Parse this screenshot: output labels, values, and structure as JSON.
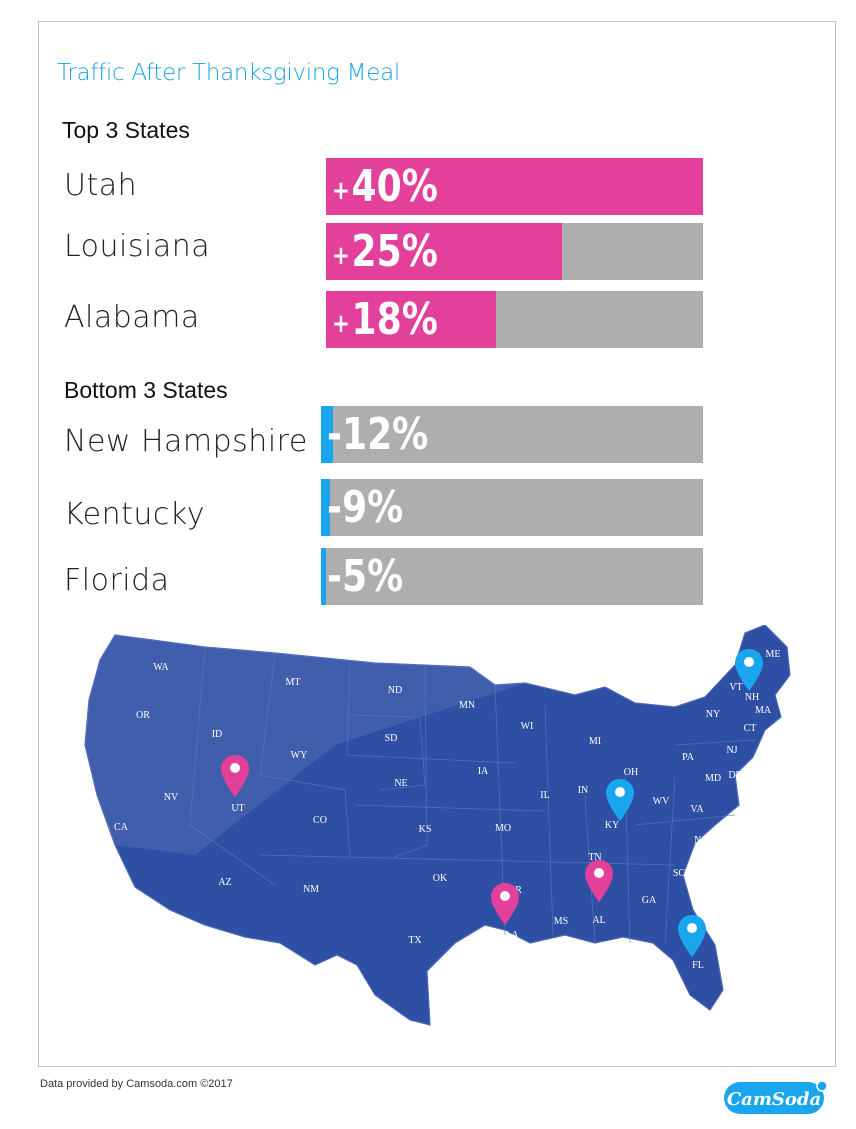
{
  "title": "Traffic After Thanksgiving Meal",
  "sections": {
    "top_label": "Top 3 States",
    "bottom_label": "Bottom 3 States"
  },
  "chart_data": {
    "type": "bar",
    "orientation": "horizontal",
    "title": "Traffic After Thanksgiving Meal",
    "groups": [
      {
        "name": "Top 3 States",
        "categories": [
          "Utah",
          "Louisiana",
          "Alabama"
        ],
        "values": [
          40,
          25,
          18
        ],
        "labels": [
          "+40%",
          "+25%",
          "+18%"
        ],
        "color": "#e2409b"
      },
      {
        "name": "Bottom 3 States",
        "categories": [
          "New Hampshire",
          "Kentucky",
          "Florida"
        ],
        "values": [
          -12,
          -9,
          -5
        ],
        "labels": [
          "-12%",
          "-9%",
          "-5%"
        ],
        "color": "#1aa6ee"
      }
    ],
    "track_color": "#aeaeae",
    "xlim": [
      0,
      40
    ]
  },
  "map": {
    "background_color": "#2e4fa3",
    "marker_pos_color": "#e2409b",
    "marker_neg_color": "#1aa6ee",
    "state_labels": [
      "WA",
      "OR",
      "CA",
      "ID",
      "NV",
      "MT",
      "WY",
      "UT",
      "AZ",
      "CO",
      "NM",
      "ND",
      "SD",
      "NE",
      "KS",
      "OK",
      "TX",
      "MN",
      "IA",
      "MO",
      "AR",
      "LA",
      "WI",
      "IL",
      "MI",
      "IN",
      "KY",
      "TN",
      "MS",
      "AL",
      "GA",
      "FL",
      "SC",
      "NC",
      "VA",
      "WV",
      "OH",
      "PA",
      "NY",
      "VT",
      "NH",
      "ME",
      "MA",
      "CT",
      "NJ",
      "MD",
      "DE"
    ],
    "markers": [
      {
        "state": "UT",
        "kind": "pos"
      },
      {
        "state": "LA",
        "kind": "pos"
      },
      {
        "state": "AL",
        "kind": "pos"
      },
      {
        "state": "NH",
        "kind": "neg"
      },
      {
        "state": "KY",
        "kind": "neg"
      },
      {
        "state": "FL",
        "kind": "neg"
      }
    ]
  },
  "footer": "Data provided by Camsoda.com ©2017",
  "logo_text": "CamSoda"
}
